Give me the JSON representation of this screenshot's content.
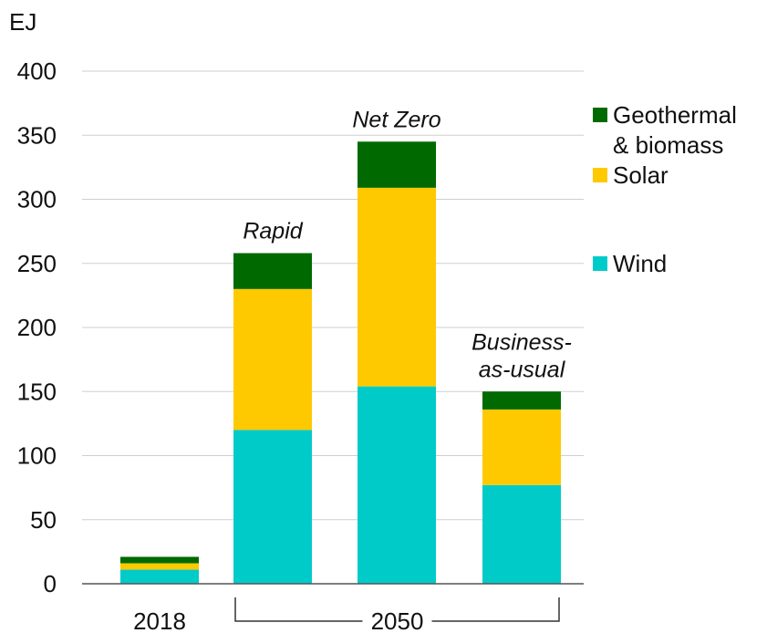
{
  "chart_data": {
    "type": "bar",
    "stacked": true,
    "ylabel": "EJ",
    "ylim": [
      0,
      400
    ],
    "yticks": [
      0,
      50,
      100,
      150,
      200,
      250,
      300,
      350,
      400
    ],
    "grid": true,
    "legend_position": "right",
    "categories": [
      "2018",
      "Rapid",
      "Net Zero",
      "Business-as-usual"
    ],
    "bar_labels": [
      {
        "lines": []
      },
      {
        "lines": [
          "Rapid"
        ]
      },
      {
        "lines": [
          "Net Zero"
        ]
      },
      {
        "lines": [
          "Business-",
          "as-usual"
        ]
      }
    ],
    "x_labels": {
      "single": "2018",
      "group": "2050"
    },
    "series": [
      {
        "name": "Wind",
        "color": "#00cbc9",
        "values": [
          11,
          120,
          154,
          77
        ]
      },
      {
        "name": "Solar",
        "color": "#ffc900",
        "values": [
          5,
          110,
          155,
          59
        ]
      },
      {
        "name": "Geothermal & biomass",
        "color": "#006a00",
        "values": [
          5,
          28,
          36,
          14
        ]
      }
    ],
    "legend": [
      {
        "lines": [
          "Geothermal",
          "& biomass"
        ],
        "color": "#006a00",
        "icon": "square-icon"
      },
      {
        "lines": [
          "Solar"
        ],
        "color": "#ffc900",
        "icon": "square-icon"
      },
      {
        "lines": [
          "Wind"
        ],
        "color": "#00cbc9",
        "icon": "square-icon"
      }
    ]
  }
}
